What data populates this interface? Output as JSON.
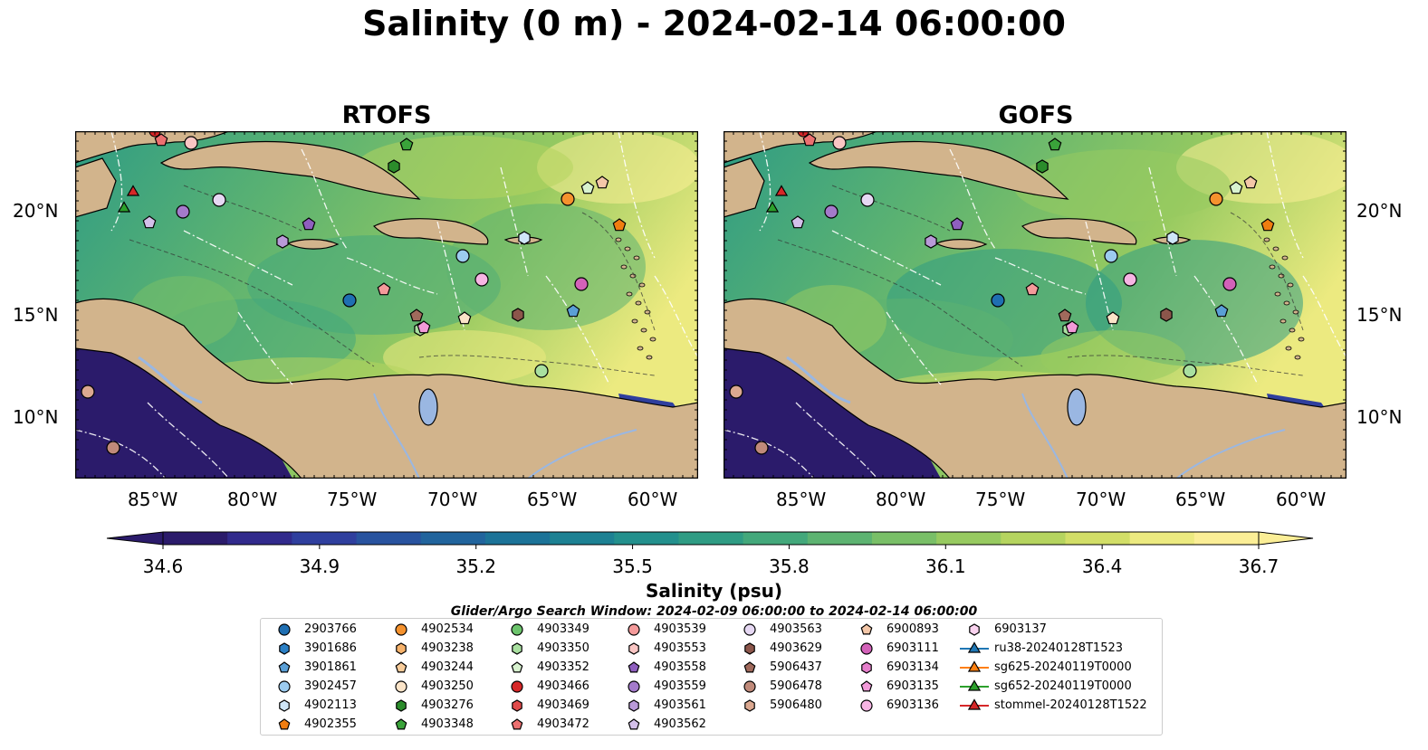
{
  "title": "Salinity (0 m) - 2024-02-14 06:00:00",
  "panels": [
    {
      "title": "RTOFS"
    },
    {
      "title": "GOFS"
    }
  ],
  "lon_ticks": [
    "85°W",
    "80°W",
    "75°W",
    "70°W",
    "65°W",
    "60°W"
  ],
  "lat_ticks": [
    "20°N",
    "15°N",
    "10°N"
  ],
  "colorbar": {
    "label": "Salinity (psu)",
    "ticks": [
      "34.6",
      "34.9",
      "35.2",
      "35.5",
      "35.8",
      "36.1",
      "36.4",
      "36.7"
    ],
    "min": 34.6,
    "max": 36.7,
    "colors": [
      "#2b1b6b",
      "#312a8c",
      "#2f3f9e",
      "#28539f",
      "#21649d",
      "#1c7398",
      "#1d8193",
      "#23908d",
      "#2f9c84",
      "#43a87b",
      "#5db371",
      "#79bf67",
      "#97ca60",
      "#b5d45f",
      "#d2de67",
      "#ecea80",
      "#fbee96"
    ]
  },
  "legend": {
    "title": "Glider/Argo Search Window: 2024-02-09 06:00:00 to 2024-02-14 06:00:00",
    "columns": [
      [
        {
          "label": "2903766",
          "marker": "circle",
          "color": "#1f6fb2"
        },
        {
          "label": "3901686",
          "marker": "hexagon",
          "color": "#2a7fc4"
        },
        {
          "label": "3901861",
          "marker": "pentagon",
          "color": "#5a9fd6"
        },
        {
          "label": "3902457",
          "marker": "circle",
          "color": "#9ccbef"
        },
        {
          "label": "4902113",
          "marker": "hexagon",
          "color": "#cfe6f8"
        },
        {
          "label": "4902355",
          "marker": "pentagon",
          "color": "#f07d10"
        }
      ],
      [
        {
          "label": "4902534",
          "marker": "circle",
          "color": "#f5922e"
        },
        {
          "label": "4903238",
          "marker": "hexagon",
          "color": "#f6b26b"
        },
        {
          "label": "4903244",
          "marker": "pentagon",
          "color": "#f8cc9a"
        },
        {
          "label": "4903250",
          "marker": "circle",
          "color": "#fbe4c8"
        },
        {
          "label": "4903276",
          "marker": "hexagon",
          "color": "#2b8c2b"
        },
        {
          "label": "4903348",
          "marker": "pentagon",
          "color": "#3aa33a"
        }
      ],
      [
        {
          "label": "4903349",
          "marker": "circle",
          "color": "#6cc46c"
        },
        {
          "label": "4903350",
          "marker": "hexagon",
          "color": "#a9e0a0"
        },
        {
          "label": "4903352",
          "marker": "pentagon",
          "color": "#d8f2cf"
        },
        {
          "label": "4903466",
          "marker": "circle",
          "color": "#d62728"
        },
        {
          "label": "4903469",
          "marker": "hexagon",
          "color": "#e04a4a"
        },
        {
          "label": "4903472",
          "marker": "pentagon",
          "color": "#ec7070"
        }
      ],
      [
        {
          "label": "4903539",
          "marker": "circle",
          "color": "#f49a9a"
        },
        {
          "label": "4903553",
          "marker": "hexagon",
          "color": "#fac6c4"
        },
        {
          "label": "4903558",
          "marker": "pentagon",
          "color": "#8f5fbf"
        },
        {
          "label": "4903559",
          "marker": "circle",
          "color": "#a47acb"
        },
        {
          "label": "4903561",
          "marker": "hexagon",
          "color": "#b99ad8"
        },
        {
          "label": "4903562",
          "marker": "pentagon",
          "color": "#d4c0ea"
        }
      ],
      [
        {
          "label": "4903563",
          "marker": "circle",
          "color": "#e6d8f3"
        },
        {
          "label": "4903629",
          "marker": "hexagon",
          "color": "#8c564b"
        },
        {
          "label": "5906437",
          "marker": "pentagon",
          "color": "#a06a5c"
        },
        {
          "label": "5906478",
          "marker": "circle",
          "color": "#c08a7a"
        },
        {
          "label": "5906480",
          "marker": "hexagon",
          "color": "#dba890"
        },
        {
          "label": "",
          "marker": "none",
          "color": "#ffffff"
        }
      ],
      [
        {
          "label": "6900893",
          "marker": "pentagon",
          "color": "#f4c7a8"
        },
        {
          "label": "6903111",
          "marker": "circle",
          "color": "#d362b9"
        },
        {
          "label": "6903134",
          "marker": "hexagon",
          "color": "#e57ecb"
        },
        {
          "label": "6903135",
          "marker": "pentagon",
          "color": "#f29ad9"
        },
        {
          "label": "6903136",
          "marker": "circle",
          "color": "#f6b5e3"
        },
        {
          "label": "",
          "marker": "none",
          "color": "#ffffff"
        }
      ],
      [
        {
          "label": "6903137",
          "marker": "hexagon",
          "color": "#fad3ef"
        },
        {
          "label": "ru38-20240128T1523",
          "marker": "triangle-line",
          "color": "#1f77b4"
        },
        {
          "label": "sg625-20240119T0000",
          "marker": "triangle-line",
          "color": "#ff7f0e"
        },
        {
          "label": "sg652-20240119T0000",
          "marker": "triangle-line",
          "color": "#2ca02c"
        },
        {
          "label": "stommel-20240128T1522",
          "marker": "triangle-line",
          "color": "#d62728"
        },
        {
          "label": "",
          "marker": "none",
          "color": "#ffffff"
        }
      ]
    ]
  },
  "colors": {
    "land": "#d2b48c",
    "lakes": "#9ab7e2",
    "rivers": "#9ab7e2",
    "contours": "#333333",
    "eez_lines": "#ffffff"
  }
}
